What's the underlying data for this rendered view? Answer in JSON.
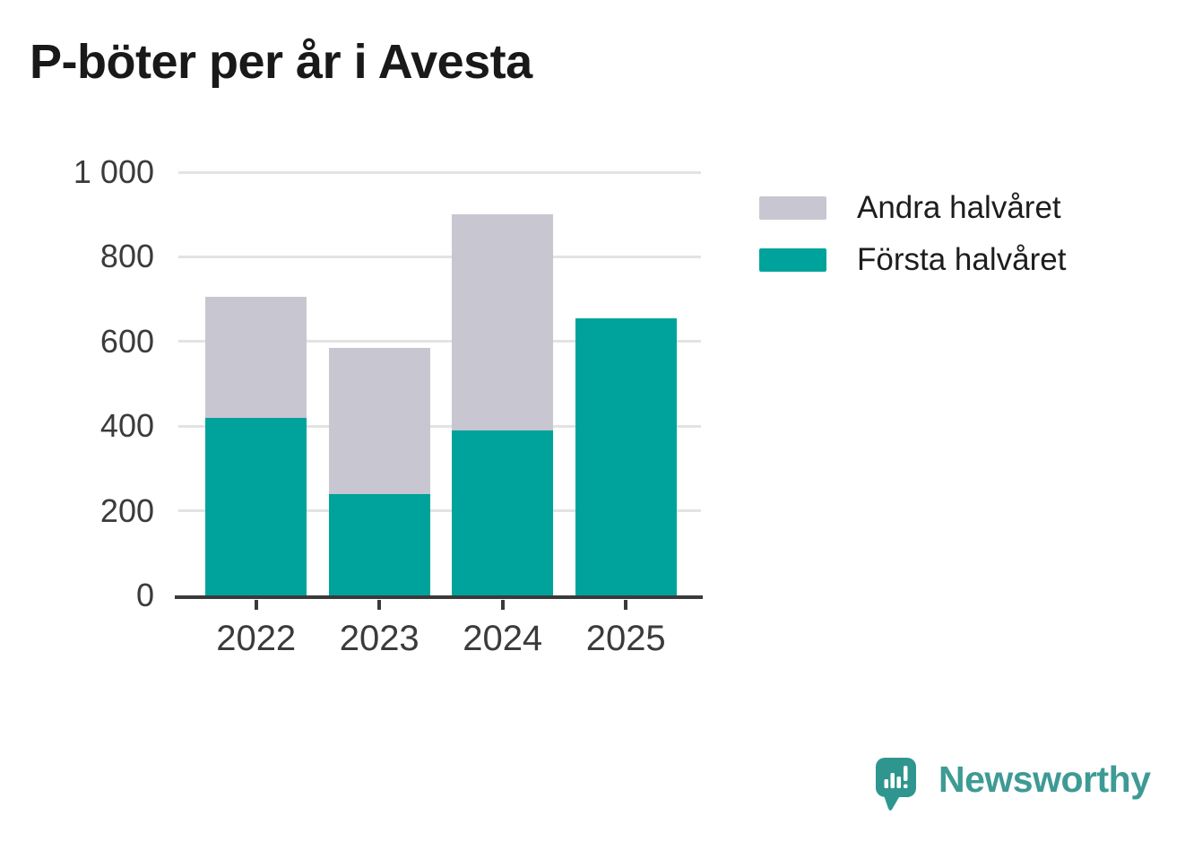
{
  "page_title": "P-böter per år i Avesta",
  "chart_data": {
    "type": "bar",
    "stacked": true,
    "title": "P-böter per år i Avesta",
    "categories": [
      "2022",
      "2023",
      "2024",
      "2025"
    ],
    "series": [
      {
        "name": "Första halvåret",
        "color": "#00a39b",
        "values": [
          420,
          240,
          390,
          655
        ]
      },
      {
        "name": "Andra halvåret",
        "color": "#c8c6d0",
        "values": [
          285,
          345,
          510,
          0
        ]
      }
    ],
    "totals": [
      705,
      585,
      900,
      655
    ],
    "xlabel": "",
    "ylabel": "",
    "ylim": [
      0,
      1000
    ],
    "y_ticks": [
      {
        "value": 0,
        "label": "0"
      },
      {
        "value": 200,
        "label": "200"
      },
      {
        "value": 400,
        "label": "400"
      },
      {
        "value": 600,
        "label": "600"
      },
      {
        "value": 800,
        "label": "800"
      },
      {
        "value": 1000,
        "label": "1 000"
      }
    ],
    "grid": "horizontal",
    "legend_position": "top-right",
    "legend": [
      {
        "label": "Andra halvåret",
        "color": "#c8c6d0"
      },
      {
        "label": "Första halvåret",
        "color": "#00a39b"
      }
    ]
  },
  "colors": {
    "first_half": "#00a39b",
    "second_half": "#c8c6d0",
    "gridline": "#e3e3e3",
    "axis": "#3a3a3a",
    "axis_text": "#3b3b3b",
    "title_text": "#191919",
    "brand_teal": "#3e9a94",
    "logo_bubble": "#2f968f"
  },
  "branding": {
    "logo_text": "Newsworthy",
    "logo_icon": "bar-chart-speech-bubble"
  }
}
